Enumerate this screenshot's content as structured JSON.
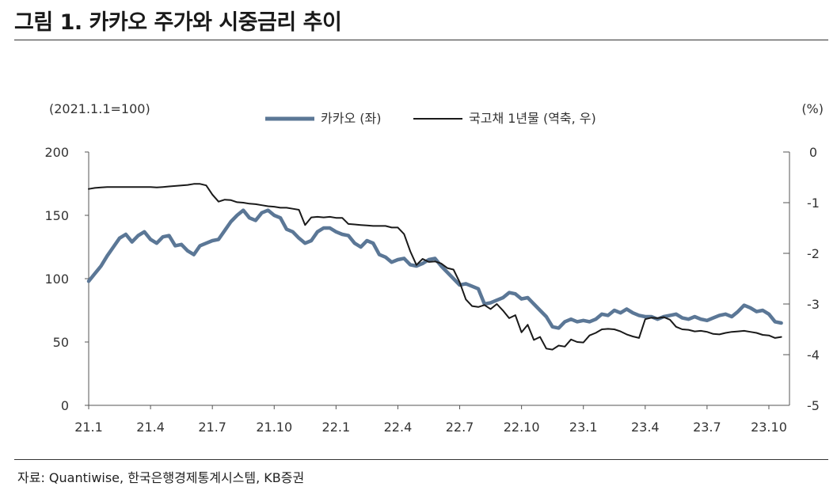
{
  "title": "그림 1. 카카오 주가와 시중금리 추이",
  "source": "자료: Quantiwise, 한국은행경제통계시스템, KB증권",
  "chart_data": {
    "type": "line",
    "title": "그림 1. 카카오 주가와 시중금리 추이",
    "left_axis_label": "(2021.1.1=100)",
    "right_axis_label": "(%)",
    "x_tick_labels": [
      "21.1",
      "21.4",
      "21.7",
      "21.10",
      "22.1",
      "22.4",
      "22.7",
      "22.10",
      "23.1",
      "23.4",
      "23.7",
      "23.10"
    ],
    "x_range_months": [
      0,
      34
    ],
    "left_ylim": [
      0,
      200
    ],
    "left_ticks": [
      0,
      50,
      100,
      150,
      200
    ],
    "right_ylim": [
      -5,
      0
    ],
    "right_ticks": [
      0,
      -1,
      -2,
      -3,
      -4,
      -5
    ],
    "right_tick_labels": [
      "0",
      "-1",
      "-2",
      "-3",
      "-4",
      "-5"
    ],
    "right_axis_inverted_note": "역축",
    "legend_position": "top-center",
    "grid": false,
    "colors": {
      "kakao": "#5b7796",
      "bond": "#1a1a1a"
    },
    "series": [
      {
        "name": "카카오 (좌)",
        "axis": "left",
        "color": "#5b7796",
        "x": [
          0,
          0.3,
          0.6,
          0.9,
          1.2,
          1.5,
          1.8,
          2.1,
          2.4,
          2.7,
          3,
          3.3,
          3.6,
          3.9,
          4.2,
          4.5,
          4.8,
          5.1,
          5.4,
          5.7,
          6,
          6.3,
          6.6,
          6.9,
          7.2,
          7.5,
          7.8,
          8.1,
          8.4,
          8.7,
          9,
          9.3,
          9.6,
          9.9,
          10.2,
          10.5,
          10.8,
          11.1,
          11.4,
          11.7,
          12,
          12.3,
          12.6,
          12.9,
          13.2,
          13.5,
          13.8,
          14.1,
          14.4,
          14.7,
          15,
          15.3,
          15.6,
          15.9,
          16.2,
          16.5,
          16.8,
          17.1,
          17.4,
          17.7,
          18,
          18.3,
          18.6,
          18.9,
          19.2,
          19.5,
          19.8,
          20.1,
          20.4,
          20.7,
          21,
          21.3,
          21.6,
          21.9,
          22.2,
          22.5,
          22.8,
          23.1,
          23.4,
          23.7,
          24,
          24.3,
          24.6,
          24.9,
          25.2,
          25.5,
          25.8,
          26.1,
          26.4,
          26.7,
          27,
          27.3,
          27.6,
          27.9,
          28.2,
          28.5,
          28.8,
          29.1,
          29.4,
          29.7,
          30,
          30.3,
          30.6,
          30.9,
          31.2,
          31.5,
          31.8,
          32.1,
          32.4,
          32.7,
          33,
          33.3,
          33.6
        ],
        "values": [
          98,
          104,
          110,
          118,
          125,
          132,
          135,
          129,
          134,
          137,
          131,
          128,
          133,
          134,
          126,
          127,
          122,
          119,
          126,
          128,
          130,
          131,
          138,
          145,
          150,
          154,
          148,
          146,
          152,
          154,
          150,
          148,
          139,
          137,
          132,
          128,
          130,
          137,
          140,
          140,
          137,
          135,
          134,
          128,
          125,
          130,
          128,
          119,
          117,
          113,
          115,
          116,
          111,
          110,
          112,
          115,
          116,
          110,
          105,
          100,
          95,
          96,
          94,
          92,
          80,
          81,
          83,
          85,
          89,
          88,
          84,
          85,
          80,
          75,
          70,
          62,
          61,
          66,
          68,
          66,
          67,
          66,
          68,
          72,
          71,
          75,
          73,
          76,
          73,
          71,
          70,
          70,
          68,
          70,
          71,
          72,
          69,
          68,
          70,
          68,
          67,
          69,
          71,
          72,
          70,
          74,
          79,
          77,
          74,
          75,
          72,
          66,
          65
        ]
      },
      {
        "name": "국고채 1년물 (역축, 우)",
        "axis": "right",
        "color": "#1a1a1a",
        "x": [
          0,
          0.3,
          0.6,
          0.9,
          1.2,
          1.5,
          1.8,
          2.1,
          2.4,
          2.7,
          3,
          3.3,
          3.6,
          3.9,
          4.2,
          4.5,
          4.8,
          5.1,
          5.4,
          5.7,
          6,
          6.3,
          6.6,
          6.9,
          7.2,
          7.5,
          7.8,
          8.1,
          8.4,
          8.7,
          9,
          9.3,
          9.6,
          9.9,
          10.2,
          10.5,
          10.8,
          11.1,
          11.4,
          11.7,
          12,
          12.3,
          12.6,
          12.9,
          13.2,
          13.5,
          13.8,
          14.1,
          14.4,
          14.7,
          15,
          15.3,
          15.6,
          15.9,
          16.2,
          16.5,
          16.8,
          17.1,
          17.4,
          17.7,
          18,
          18.3,
          18.6,
          18.9,
          19.2,
          19.5,
          19.8,
          20.1,
          20.4,
          20.7,
          21,
          21.3,
          21.6,
          21.9,
          22.2,
          22.5,
          22.8,
          23.1,
          23.4,
          23.7,
          24,
          24.3,
          24.6,
          24.9,
          25.2,
          25.5,
          25.8,
          26.1,
          26.4,
          26.7,
          27,
          27.3,
          27.6,
          27.9,
          28.2,
          28.5,
          28.8,
          29.1,
          29.4,
          29.7,
          30,
          30.3,
          30.6,
          30.9,
          31.2,
          31.5,
          31.8,
          32.1,
          32.4,
          32.7,
          33,
          33.3,
          33.6
        ],
        "values": [
          -0.73,
          -0.71,
          -0.7,
          -0.69,
          -0.69,
          -0.69,
          -0.69,
          -0.69,
          -0.69,
          -0.69,
          -0.69,
          -0.7,
          -0.69,
          -0.68,
          -0.67,
          -0.66,
          -0.65,
          -0.63,
          -0.63,
          -0.66,
          -0.84,
          -0.98,
          -0.94,
          -0.95,
          -0.99,
          -1.0,
          -1.02,
          -1.03,
          -1.05,
          -1.07,
          -1.08,
          -1.1,
          -1.1,
          -1.12,
          -1.14,
          -1.44,
          -1.29,
          -1.28,
          -1.29,
          -1.28,
          -1.3,
          -1.3,
          -1.42,
          -1.43,
          -1.44,
          -1.45,
          -1.46,
          -1.46,
          -1.46,
          -1.49,
          -1.49,
          -1.62,
          -1.96,
          -2.23,
          -2.11,
          -2.17,
          -2.16,
          -2.2,
          -2.29,
          -2.32,
          -2.57,
          -2.91,
          -3.04,
          -3.06,
          -3.02,
          -3.1,
          -3.0,
          -3.13,
          -3.28,
          -3.22,
          -3.56,
          -3.41,
          -3.71,
          -3.65,
          -3.88,
          -3.9,
          -3.82,
          -3.84,
          -3.7,
          -3.75,
          -3.76,
          -3.62,
          -3.57,
          -3.5,
          -3.49,
          -3.5,
          -3.54,
          -3.6,
          -3.64,
          -3.67,
          -3.3,
          -3.27,
          -3.28,
          -3.26,
          -3.31,
          -3.45,
          -3.5,
          -3.51,
          -3.54,
          -3.53,
          -3.55,
          -3.59,
          -3.6,
          -3.57,
          -3.55,
          -3.54,
          -3.53,
          -3.55,
          -3.57,
          -3.61,
          -3.62,
          -3.67,
          -3.65
        ]
      }
    ]
  }
}
